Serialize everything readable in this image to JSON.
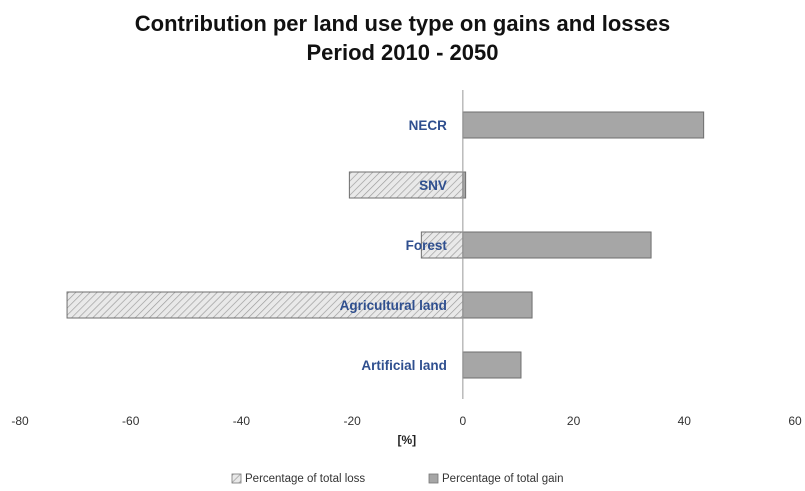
{
  "chart_data": {
    "type": "bar",
    "orientation": "horizontal",
    "title": [
      "Contribution per land use type on gains and losses",
      "Period 2010 - 2050"
    ],
    "xlabel": "[%]",
    "ylabel": "",
    "xlim": [
      -80,
      60
    ],
    "xticks": [
      "-80",
      "-60",
      "-40",
      "-20",
      "0",
      "20",
      "40",
      "60"
    ],
    "categories": [
      "NECR",
      "SNV",
      "Forest",
      "Agricultural land",
      "Artificial land"
    ],
    "series": [
      {
        "name": "Percentage of total loss",
        "values": [
          0,
          -20.5,
          -7.5,
          -71.5,
          0
        ]
      },
      {
        "name": "Percentage of total gain",
        "values": [
          43.5,
          0.5,
          34,
          12.5,
          10.5
        ]
      }
    ],
    "legend_position": "bottom",
    "grid": false,
    "colors": {
      "loss_fill": "#e9e9e9",
      "loss_hatch": "#9a9a9a",
      "gain_fill": "#a6a6a6",
      "category_label": "#2f4f8f"
    }
  }
}
